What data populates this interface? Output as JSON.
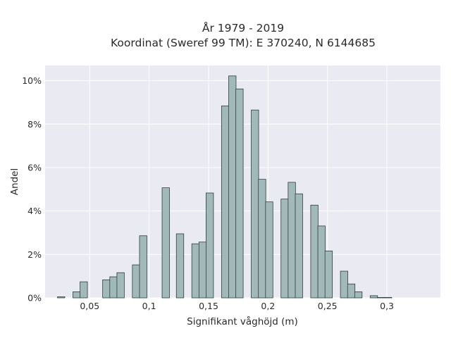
{
  "chart_data": {
    "type": "bar",
    "title": "År 1979 - 2019",
    "subtitle": "Koordinat (Sweref 99 TM): E 370240, N 6144685",
    "xlabel": "Signifikant våghöjd (m)",
    "ylabel": "Andel",
    "xlim": [
      0.0125,
      0.345
    ],
    "ylim": [
      0,
      10.7
    ],
    "x_ticks": [
      {
        "value": 0.05,
        "label": "0,05"
      },
      {
        "value": 0.1,
        "label": "0,1"
      },
      {
        "value": 0.15,
        "label": "0,15"
      },
      {
        "value": 0.2,
        "label": "0,2"
      },
      {
        "value": 0.25,
        "label": "0,25"
      },
      {
        "value": 0.3,
        "label": "0,3"
      }
    ],
    "y_ticks": [
      {
        "value": 0,
        "label": "0%"
      },
      {
        "value": 2,
        "label": "2%"
      },
      {
        "value": 4,
        "label": "4%"
      },
      {
        "value": 6,
        "label": "6%"
      },
      {
        "value": 8,
        "label": "8%"
      },
      {
        "value": 10,
        "label": "10%"
      }
    ],
    "grid": true,
    "bar_width": 0.0062,
    "bar_color": "#a2b9ba",
    "bar_edge_color": "#2f3e3e",
    "background_color": "#eaeaf2",
    "grid_color": "#ffffff",
    "x": [
      0.026,
      0.039,
      0.045,
      0.052,
      0.064,
      0.07,
      0.076,
      0.089,
      0.095,
      0.101,
      0.114,
      0.12,
      0.126,
      0.139,
      0.145,
      0.151,
      0.164,
      0.17,
      0.176,
      0.189,
      0.195,
      0.201,
      0.214,
      0.22,
      0.226,
      0.239,
      0.245,
      0.251,
      0.264,
      0.27,
      0.276,
      0.289,
      0.295,
      0.301,
      0.314,
      0.32,
      0.326
    ],
    "values": [
      0.05,
      0.28,
      0.74,
      0.0,
      0.83,
      0.97,
      1.16,
      1.52,
      2.86,
      0.0,
      5.07,
      0.0,
      2.95,
      2.49,
      2.57,
      4.83,
      8.84,
      10.22,
      9.62,
      8.65,
      5.46,
      4.42,
      4.55,
      5.32,
      4.79,
      4.27,
      3.31,
      2.16,
      1.23,
      0.64,
      0.28,
      0.1,
      0.02,
      0.02,
      0.0,
      0.0,
      0.0
    ]
  }
}
